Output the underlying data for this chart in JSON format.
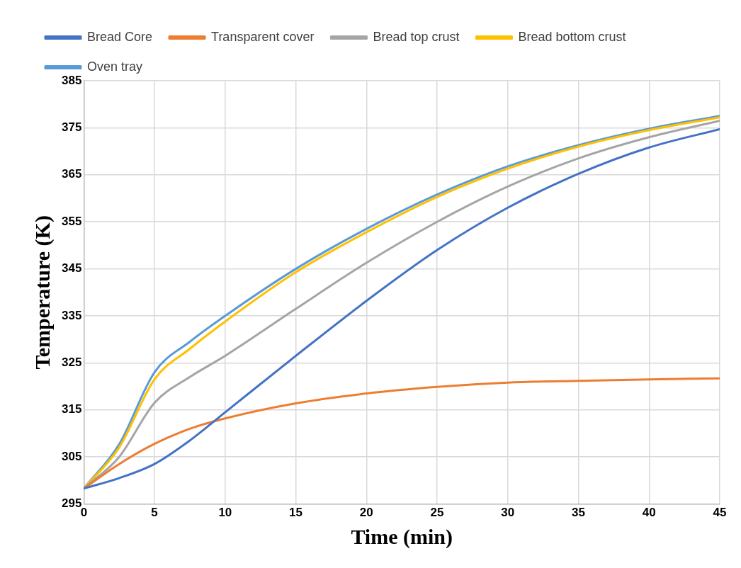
{
  "chart_data": {
    "type": "line",
    "xlabel": "Time (min)",
    "ylabel": "Temperature (K)",
    "x": [
      0,
      2.5,
      5,
      7.5,
      10,
      15,
      20,
      25,
      30,
      35,
      40,
      45
    ],
    "xlim": [
      0,
      45
    ],
    "xticks": [
      0,
      5,
      10,
      15,
      20,
      25,
      30,
      35,
      40,
      45
    ],
    "ylim": [
      295,
      385
    ],
    "yticks": [
      295,
      305,
      315,
      325,
      335,
      345,
      355,
      365,
      375,
      385
    ],
    "grid": true,
    "legend": "top",
    "marker": "none",
    "line_style": "solid",
    "series": [
      {
        "name": "Bread Core",
        "color": "#4472c4",
        "values": [
          298.3,
          300.5,
          303.5,
          308.5,
          314.5,
          326.5,
          338.2,
          349,
          358,
          365.2,
          370.8,
          374.7
        ]
      },
      {
        "name": "Transparent cover",
        "color": "#ed7d31",
        "values": [
          298.3,
          303.5,
          307.8,
          311,
          313.2,
          316.4,
          318.5,
          319.9,
          320.8,
          321.2,
          321.5,
          321.7
        ]
      },
      {
        "name": "Bread top crust",
        "color": "#a5a5a5",
        "values": [
          298.3,
          305,
          316.5,
          322,
          326.5,
          336.5,
          346.3,
          355,
          362.5,
          368.5,
          373,
          376.5
        ]
      },
      {
        "name": "Bread bottom crust",
        "color": "#ffc000",
        "values": [
          298.3,
          307,
          321.5,
          328,
          333.8,
          344.3,
          352.8,
          360.3,
          366.3,
          371,
          374.5,
          377.2
        ]
      },
      {
        "name": "Oven tray",
        "color": "#5b9bd5",
        "values": [
          298.3,
          307.7,
          323,
          329.5,
          335,
          345,
          353.5,
          360.8,
          366.8,
          371.3,
          374.8,
          377.5
        ]
      }
    ]
  }
}
